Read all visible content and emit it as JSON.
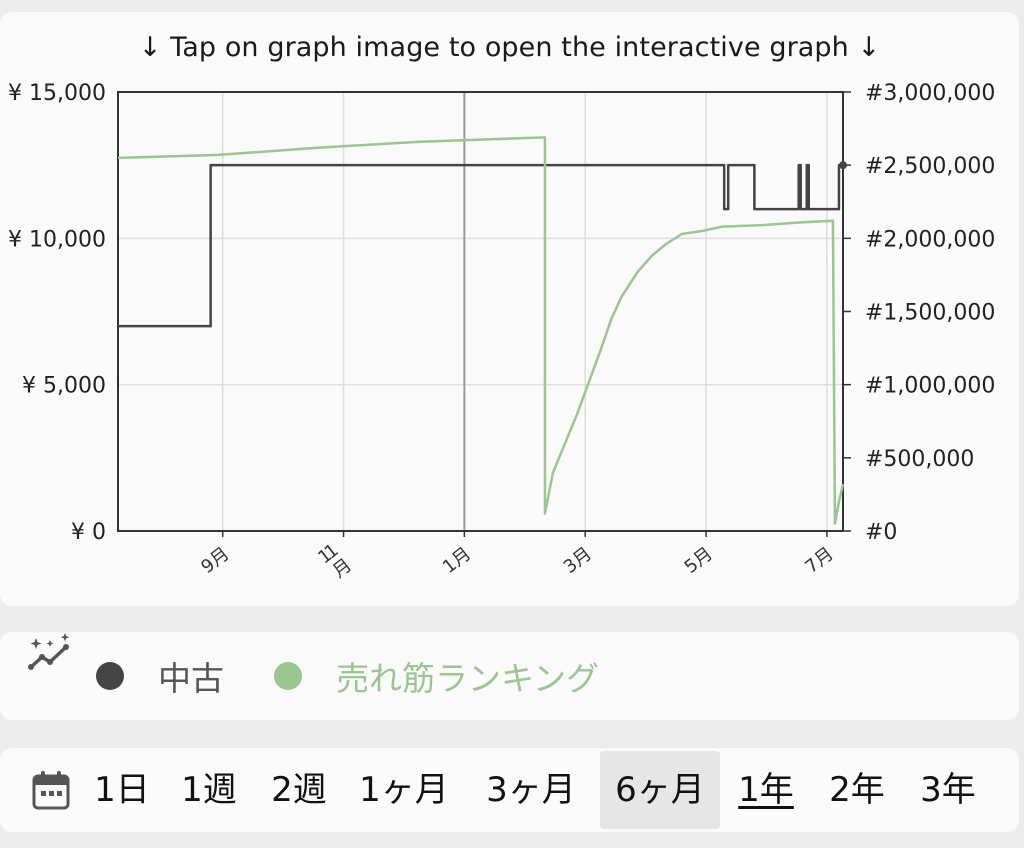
{
  "hint": "↓ Tap on graph image to open the interactive graph ↓",
  "colors": {
    "used": "#444444",
    "rank": "#9cc592",
    "grid": "#dddddd",
    "highlight_grid": "#999999",
    "frame": "#333333"
  },
  "chart_data": {
    "type": "line",
    "y_left": {
      "range": [
        0,
        15000
      ],
      "ticks": [
        {
          "v": 0,
          "label": "¥ 0"
        },
        {
          "v": 5000,
          "label": "¥ 5,000"
        },
        {
          "v": 10000,
          "label": "¥ 10,000"
        },
        {
          "v": 15000,
          "label": "¥ 15,000"
        }
      ]
    },
    "y_right": {
      "range": [
        0,
        3000000
      ],
      "ticks": [
        {
          "v": 0,
          "label": "#0"
        },
        {
          "v": 500000,
          "label": "#500,000"
        },
        {
          "v": 1000000,
          "label": "#1,000,000"
        },
        {
          "v": 1500000,
          "label": "#1,500,000"
        },
        {
          "v": 2000000,
          "label": "#2,000,000"
        },
        {
          "v": 2500000,
          "label": "#2,500,000"
        },
        {
          "v": 3000000,
          "label": "#3,000,000"
        }
      ]
    },
    "x": {
      "range": [
        0,
        360
      ],
      "ticks": [
        {
          "v": 52,
          "label": "9月",
          "vertical": false
        },
        {
          "v": 112,
          "label": "11月",
          "vertical": true
        },
        {
          "v": 172,
          "label": "1月",
          "vertical": false,
          "highlight": true
        },
        {
          "v": 232,
          "label": "3月",
          "vertical": false
        },
        {
          "v": 292,
          "label": "5月",
          "vertical": false
        },
        {
          "v": 352,
          "label": "7月",
          "vertical": false
        }
      ]
    },
    "series": [
      {
        "name": "中古",
        "axis": "left",
        "step": true,
        "points": [
          [
            0,
            7000
          ],
          [
            46,
            12500
          ],
          [
            301,
            11000
          ],
          [
            303,
            12500
          ],
          [
            313,
            12500
          ],
          [
            316,
            11000
          ],
          [
            336,
            11000
          ],
          [
            338,
            12500
          ],
          [
            339,
            11000
          ],
          [
            342,
            12500
          ],
          [
            343,
            11000
          ],
          [
            356,
            11000
          ],
          [
            358,
            12500
          ],
          [
            360,
            12500
          ]
        ]
      },
      {
        "name": "売れ筋ランキング",
        "axis": "right",
        "step": false,
        "points": [
          [
            0,
            2550000
          ],
          [
            50,
            2570000
          ],
          [
            100,
            2620000
          ],
          [
            150,
            2660000
          ],
          [
            212,
            2690000
          ],
          [
            212,
            120000
          ],
          [
            216,
            400000
          ],
          [
            222,
            600000
          ],
          [
            228,
            800000
          ],
          [
            232,
            950000
          ],
          [
            236,
            1100000
          ],
          [
            240,
            1250000
          ],
          [
            245,
            1450000
          ],
          [
            250,
            1600000
          ],
          [
            258,
            1770000
          ],
          [
            265,
            1880000
          ],
          [
            272,
            1960000
          ],
          [
            280,
            2030000
          ],
          [
            290,
            2050000
          ],
          [
            300,
            2080000
          ],
          [
            320,
            2090000
          ],
          [
            340,
            2110000
          ],
          [
            355,
            2120000
          ],
          [
            356,
            50000
          ],
          [
            358,
            200000
          ],
          [
            360,
            320000
          ]
        ]
      }
    ],
    "end_marker": {
      "series": 0,
      "x": 360,
      "y": 12500
    }
  },
  "legend": {
    "trend_icon": "sparkle-trend-icon",
    "items": [
      {
        "label": "中古",
        "color": "#444444"
      },
      {
        "label": "売れ筋ランキング",
        "color": "#9cc592"
      }
    ]
  },
  "ranges": {
    "calendar_icon": "calendar-icon",
    "items": [
      {
        "label": "1日"
      },
      {
        "label": "1週"
      },
      {
        "label": "2週"
      },
      {
        "label": "1ヶ月"
      },
      {
        "label": "3ヶ月"
      },
      {
        "label": "6ヶ月",
        "selected": true
      },
      {
        "label": "1年",
        "underlined": true
      },
      {
        "label": "2年"
      },
      {
        "label": "3年"
      }
    ]
  }
}
